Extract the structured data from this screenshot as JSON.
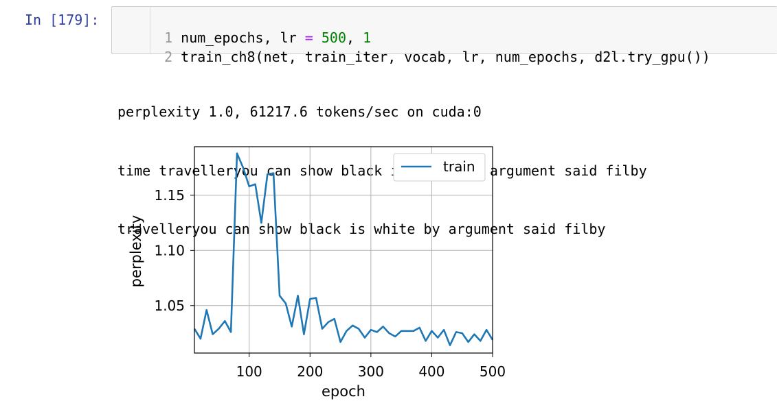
{
  "cell": {
    "prompt": "In [179]:",
    "lines": [
      {
        "num": "1",
        "parts": [
          {
            "t": "num_epochs, lr ",
            "c": "code-text"
          },
          {
            "t": "=",
            "c": "tok-op"
          },
          {
            "t": " ",
            "c": "code-text"
          },
          {
            "t": "500",
            "c": "tok-num"
          },
          {
            "t": ", ",
            "c": "code-text"
          },
          {
            "t": "1",
            "c": "tok-num"
          }
        ]
      },
      {
        "num": "2",
        "parts": [
          {
            "t": "train_ch8(net, train_iter, vocab, lr, num_epochs, d2l.try_gpu())",
            "c": "code-text"
          }
        ]
      }
    ]
  },
  "output": {
    "lines": [
      "perplexity 1.0, 61217.6 tokens/sec on cuda:0",
      "time travelleryou can show black is white by argument said filby",
      "travelleryou can show black is white by argument said filby"
    ]
  },
  "chart_data": {
    "type": "line",
    "xlabel": "epoch",
    "ylabel": "perplexity",
    "xlim": [
      10,
      500
    ],
    "ylim": [
      1.007,
      1.194
    ],
    "xticks": [
      100,
      200,
      300,
      400,
      500
    ],
    "yticks": [
      1.05,
      1.1,
      1.15
    ],
    "ytick_labels": [
      "1.05",
      "1.10",
      "1.15"
    ],
    "grid": true,
    "legend": "top-right",
    "series": [
      {
        "name": "train",
        "color": "#1f77b4",
        "x": [
          10,
          20,
          30,
          40,
          50,
          60,
          70,
          80,
          90,
          100,
          110,
          120,
          130,
          140,
          150,
          160,
          170,
          180,
          190,
          200,
          210,
          220,
          230,
          240,
          250,
          260,
          270,
          280,
          290,
          300,
          310,
          320,
          330,
          340,
          350,
          360,
          370,
          380,
          390,
          400,
          410,
          420,
          430,
          440,
          450,
          460,
          470,
          480,
          490,
          500
        ],
        "y": [
          1.029,
          1.02,
          1.046,
          1.024,
          1.029,
          1.036,
          1.026,
          1.188,
          1.175,
          1.158,
          1.16,
          1.125,
          1.169,
          1.17,
          1.059,
          1.052,
          1.031,
          1.059,
          1.024,
          1.056,
          1.057,
          1.029,
          1.035,
          1.038,
          1.017,
          1.027,
          1.032,
          1.029,
          1.021,
          1.028,
          1.026,
          1.031,
          1.025,
          1.022,
          1.027,
          1.027,
          1.027,
          1.03,
          1.018,
          1.027,
          1.021,
          1.028,
          1.014,
          1.026,
          1.025,
          1.017,
          1.024,
          1.018,
          1.028,
          1.019
        ]
      }
    ]
  }
}
